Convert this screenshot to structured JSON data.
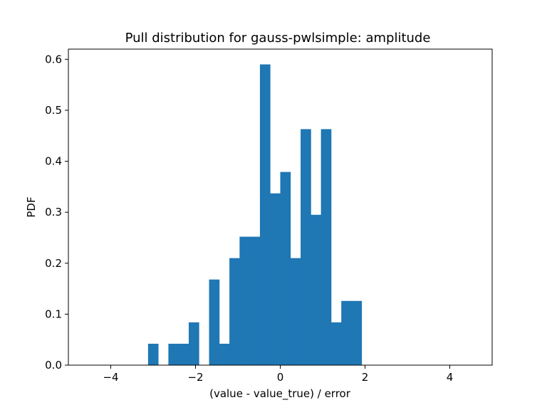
{
  "chart_data": {
    "type": "bar",
    "title": "Pull distribution for gauss-pwlsimple: amplitude",
    "xlabel": "(value - value_true) / error",
    "ylabel": "PDF",
    "xlim": [
      -5,
      5
    ],
    "ylim": [
      0,
      0.62
    ],
    "xticks": [
      -4,
      -2,
      0,
      2,
      4
    ],
    "xtick_labels": [
      "−4",
      "−2",
      "0",
      "2",
      "4"
    ],
    "yticks": [
      0.0,
      0.1,
      0.2,
      0.3,
      0.4,
      0.5,
      0.6
    ],
    "ytick_labels": [
      "0.0",
      "0.1",
      "0.2",
      "0.3",
      "0.4",
      "0.5",
      "0.6"
    ],
    "grid": false,
    "bar_color": "#1f77b4",
    "bins": [
      {
        "x0": -3.12,
        "x1": -2.88,
        "value": 0.042
      },
      {
        "x0": -2.64,
        "x1": -2.4,
        "value": 0.042
      },
      {
        "x0": -2.4,
        "x1": -2.16,
        "value": 0.042
      },
      {
        "x0": -2.16,
        "x1": -1.92,
        "value": 0.084
      },
      {
        "x0": -1.68,
        "x1": -1.44,
        "value": 0.168
      },
      {
        "x0": -1.44,
        "x1": -1.2,
        "value": 0.042
      },
      {
        "x0": -1.2,
        "x1": -0.96,
        "value": 0.21
      },
      {
        "x0": -0.96,
        "x1": -0.72,
        "value": 0.252
      },
      {
        "x0": -0.72,
        "x1": -0.48,
        "value": 0.252
      },
      {
        "x0": -0.48,
        "x1": -0.24,
        "value": 0.59
      },
      {
        "x0": -0.24,
        "x1": 0.0,
        "value": 0.337
      },
      {
        "x0": 0.0,
        "x1": 0.24,
        "value": 0.379
      },
      {
        "x0": 0.24,
        "x1": 0.48,
        "value": 0.21
      },
      {
        "x0": 0.48,
        "x1": 0.72,
        "value": 0.463
      },
      {
        "x0": 0.72,
        "x1": 0.96,
        "value": 0.295
      },
      {
        "x0": 0.96,
        "x1": 1.2,
        "value": 0.463
      },
      {
        "x0": 1.2,
        "x1": 1.44,
        "value": 0.084
      },
      {
        "x0": 1.44,
        "x1": 1.68,
        "value": 0.126
      },
      {
        "x0": 1.68,
        "x1": 1.92,
        "value": 0.126
      }
    ]
  }
}
